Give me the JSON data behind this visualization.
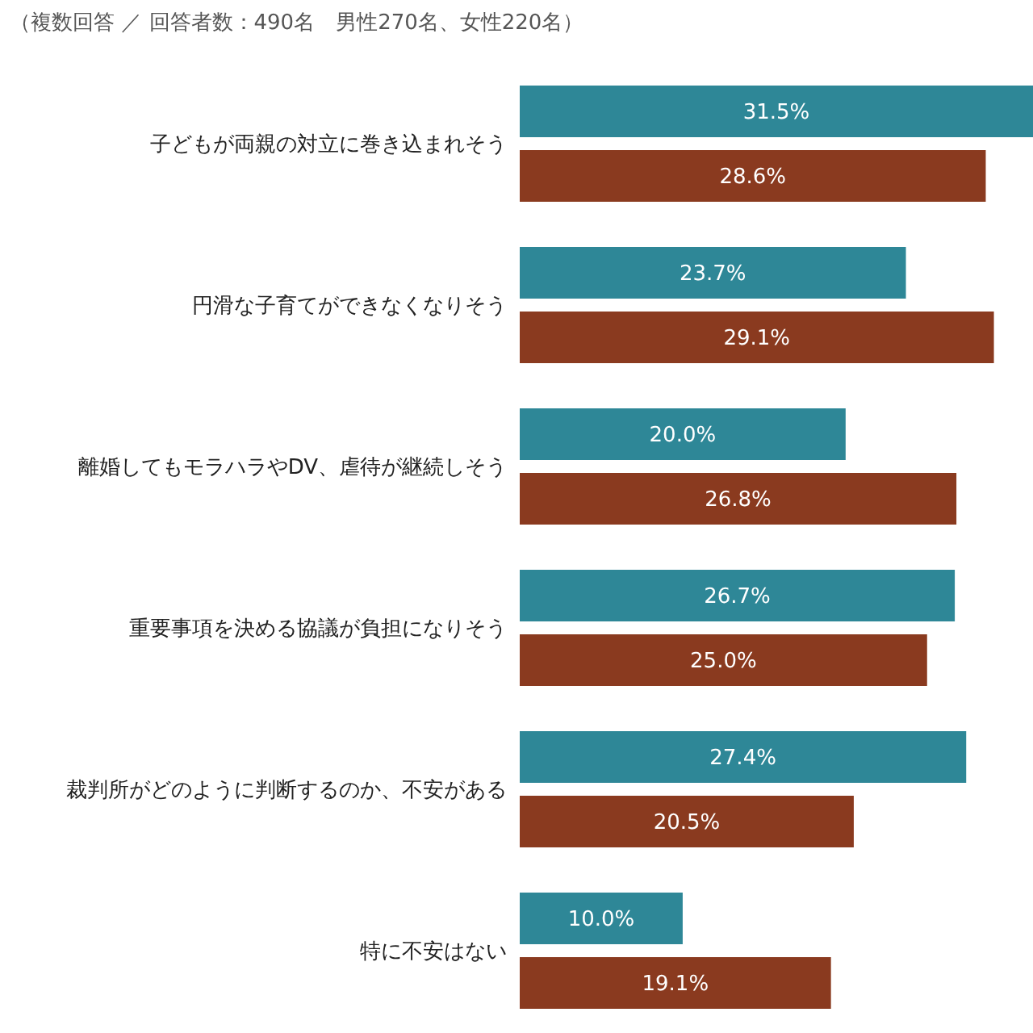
{
  "chart_data": {
    "type": "bar",
    "orientation": "horizontal",
    "subtitle": "（複数回答 ／ 回答者数：490名　男性270名、女性220名）",
    "categories": [
      "子どもが両親の対立に巻き込まれそう",
      "円滑な子育てができなくなりそう",
      "離婚してもモラハラやDV、虐待が継続しそう",
      "重要事項を決める協議が負担になりそう",
      "裁判所がどのように判断するのか、不安がある",
      "特に不安はない"
    ],
    "xlim": [
      0,
      31.5
    ],
    "series": [
      {
        "color": "#2e8797",
        "values": [
          31.5,
          23.7,
          20.0,
          26.7,
          27.4,
          10.0
        ],
        "value_labels": [
          "31.5%",
          "23.7%",
          "20.0%",
          "26.7%",
          "27.4%",
          "10.0%"
        ]
      },
      {
        "color": "#8a3a1f",
        "values": [
          28.6,
          29.1,
          26.8,
          25.0,
          20.5,
          19.1
        ],
        "value_labels": [
          "28.6%",
          "29.1%",
          "26.8%",
          "25.0%",
          "20.5%",
          "19.1%"
        ]
      }
    ]
  }
}
